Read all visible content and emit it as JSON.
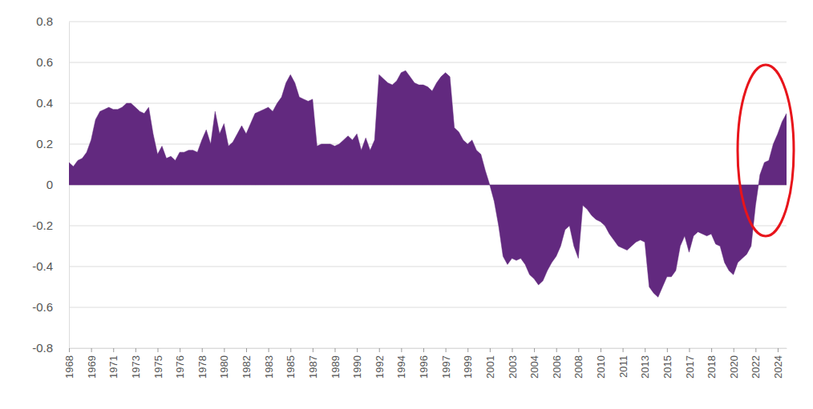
{
  "chart_data": {
    "type": "area",
    "color": "#62297f",
    "grid": true,
    "ylim": [
      -0.8,
      0.8
    ],
    "yticks": [
      -0.8,
      -0.6,
      -0.4,
      -0.2,
      0,
      0.2,
      0.4,
      0.6,
      0.8
    ],
    "categories": [
      "1968",
      null,
      null,
      null,
      null,
      "1969",
      null,
      null,
      null,
      null,
      "1971",
      null,
      null,
      null,
      null,
      "1973",
      null,
      null,
      null,
      null,
      "1975",
      null,
      null,
      null,
      null,
      "1976",
      null,
      null,
      null,
      null,
      "1978",
      null,
      null,
      null,
      null,
      "1980",
      null,
      null,
      null,
      null,
      "1982",
      null,
      null,
      null,
      null,
      "1983",
      null,
      null,
      null,
      null,
      "1985",
      null,
      null,
      null,
      null,
      "1987",
      null,
      null,
      null,
      null,
      "1989",
      null,
      null,
      null,
      null,
      "1990",
      null,
      null,
      null,
      null,
      "1992",
      null,
      null,
      null,
      null,
      "1994",
      null,
      null,
      null,
      null,
      "1996",
      null,
      null,
      null,
      null,
      "1997",
      null,
      null,
      null,
      null,
      "1999",
      null,
      null,
      null,
      null,
      "2001",
      null,
      null,
      null,
      null,
      "2003",
      null,
      null,
      null,
      null,
      "2004",
      null,
      null,
      null,
      null,
      "2006",
      null,
      null,
      null,
      null,
      "2008",
      null,
      null,
      null,
      null,
      "2010",
      null,
      null,
      null,
      null,
      "2011",
      null,
      null,
      null,
      null,
      "2013",
      null,
      null,
      null,
      null,
      "2015",
      null,
      null,
      null,
      null,
      "2017",
      null,
      null,
      null,
      null,
      "2018",
      null,
      null,
      null,
      null,
      "2020",
      null,
      null,
      null,
      null,
      "2022",
      null,
      null,
      null,
      null,
      "2024",
      null,
      null
    ],
    "values": [
      0.11,
      0.09,
      0.12,
      0.13,
      0.16,
      0.22,
      0.32,
      0.36,
      0.37,
      0.38,
      0.37,
      0.37,
      0.38,
      0.4,
      0.4,
      0.38,
      0.36,
      0.35,
      0.38,
      0.25,
      0.15,
      0.19,
      0.13,
      0.14,
      0.12,
      0.16,
      0.16,
      0.17,
      0.17,
      0.16,
      0.22,
      0.27,
      0.2,
      0.36,
      0.25,
      0.3,
      0.19,
      0.21,
      0.25,
      0.29,
      0.25,
      0.3,
      0.35,
      0.36,
      0.37,
      0.38,
      0.36,
      0.4,
      0.43,
      0.5,
      0.54,
      0.5,
      0.43,
      0.42,
      0.41,
      0.42,
      0.19,
      0.2,
      0.2,
      0.2,
      0.19,
      0.2,
      0.22,
      0.24,
      0.22,
      0.25,
      0.17,
      0.23,
      0.17,
      0.22,
      0.54,
      0.52,
      0.5,
      0.49,
      0.51,
      0.55,
      0.56,
      0.53,
      0.5,
      0.49,
      0.49,
      0.48,
      0.46,
      0.5,
      0.53,
      0.55,
      0.53,
      0.28,
      0.26,
      0.22,
      0.2,
      0.22,
      0.17,
      0.15,
      0.07,
      0.0,
      -0.08,
      -0.2,
      -0.35,
      -0.39,
      -0.36,
      -0.37,
      -0.36,
      -0.39,
      -0.44,
      -0.46,
      -0.49,
      -0.47,
      -0.42,
      -0.38,
      -0.35,
      -0.3,
      -0.22,
      -0.2,
      -0.3,
      -0.36,
      -0.1,
      -0.12,
      -0.15,
      -0.17,
      -0.18,
      -0.2,
      -0.24,
      -0.27,
      -0.3,
      -0.31,
      -0.32,
      -0.3,
      -0.28,
      -0.27,
      -0.28,
      -0.5,
      -0.53,
      -0.55,
      -0.5,
      -0.45,
      -0.45,
      -0.42,
      -0.3,
      -0.25,
      -0.33,
      -0.25,
      -0.23,
      -0.24,
      -0.25,
      -0.24,
      -0.29,
      -0.3,
      -0.38,
      -0.42,
      -0.44,
      -0.38,
      -0.36,
      -0.34,
      -0.3,
      -0.1,
      0.05,
      0.11,
      0.12,
      0.2,
      0.25,
      0.31,
      0.35
    ]
  }
}
